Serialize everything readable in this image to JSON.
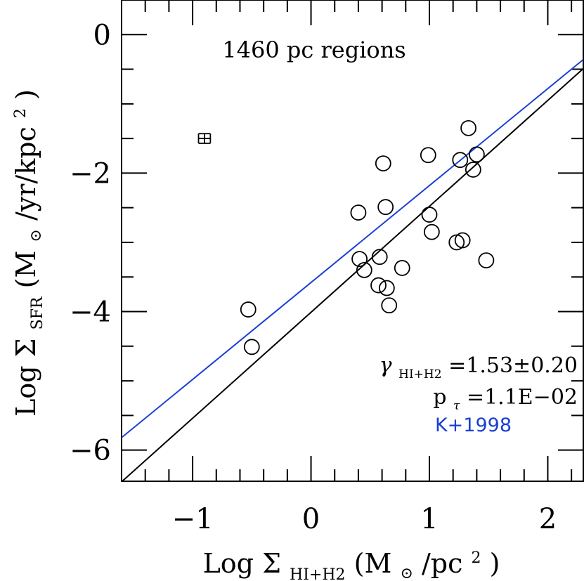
{
  "chart_data": {
    "type": "scatter",
    "title": "1460 pc regions",
    "xlabel": {
      "prefix": "Log Σ",
      "sub": "HI+H2",
      "suffix": " (M",
      "sun": "⊙",
      "tail": "/pc",
      "sup": "2",
      "close": ")"
    },
    "ylabel": {
      "prefix": "Log Σ",
      "sub": "SFR",
      "suffix": "  (M",
      "sun": "⊙",
      "tail": "/yr/kpc",
      "sup": "2",
      "close": ")"
    },
    "xlim": [
      -1.6,
      2.3
    ],
    "ylim": [
      -6.45,
      0.5
    ],
    "x_major_ticks": [
      -1,
      0,
      1,
      2
    ],
    "x_major_labels": [
      "−1",
      "0",
      "1",
      "2"
    ],
    "x_minor_step": 0.2,
    "y_major_ticks": [
      -6,
      -4,
      -2,
      0
    ],
    "y_major_labels": [
      "−6",
      "−4",
      "−2",
      "0"
    ],
    "y_minor_step": 0.5,
    "points": [
      {
        "x": -0.53,
        "y": -3.97
      },
      {
        "x": -0.5,
        "y": -4.51
      },
      {
        "x": 0.4,
        "y": -2.57
      },
      {
        "x": 0.41,
        "y": -3.24
      },
      {
        "x": 0.45,
        "y": -3.4
      },
      {
        "x": 0.57,
        "y": -3.62
      },
      {
        "x": 0.58,
        "y": -3.21
      },
      {
        "x": 0.61,
        "y": -1.86
      },
      {
        "x": 0.63,
        "y": -2.49
      },
      {
        "x": 0.64,
        "y": -3.66
      },
      {
        "x": 0.66,
        "y": -3.91
      },
      {
        "x": 0.77,
        "y": -3.37
      },
      {
        "x": 0.99,
        "y": -1.74
      },
      {
        "x": 1.0,
        "y": -2.6
      },
      {
        "x": 1.02,
        "y": -2.85
      },
      {
        "x": 1.23,
        "y": -3.0
      },
      {
        "x": 1.26,
        "y": -1.81
      },
      {
        "x": 1.28,
        "y": -2.97
      },
      {
        "x": 1.33,
        "y": -1.35
      },
      {
        "x": 1.37,
        "y": -1.95
      },
      {
        "x": 1.4,
        "y": -1.73
      },
      {
        "x": 1.48,
        "y": -3.26
      }
    ],
    "fit_line": {
      "name": "fit",
      "slope": 1.53,
      "intercept": -4.01,
      "color": "#000000"
    },
    "reference_line": {
      "name": "K+1998",
      "slope": 1.4,
      "intercept": -3.58,
      "color": "#1a3fd4"
    },
    "error_bar": {
      "x": -0.9,
      "y": -1.5,
      "xerr": 0.05,
      "yerr": 0.07
    },
    "annotations": {
      "gamma": {
        "symbol": "γ",
        "sub": "HI+H2",
        "text": "=1.53±0.20"
      },
      "ptau": {
        "symbol": "p",
        "sub": "τ",
        "text": "=1.1E−02"
      },
      "ref_label": "K+1998"
    }
  }
}
